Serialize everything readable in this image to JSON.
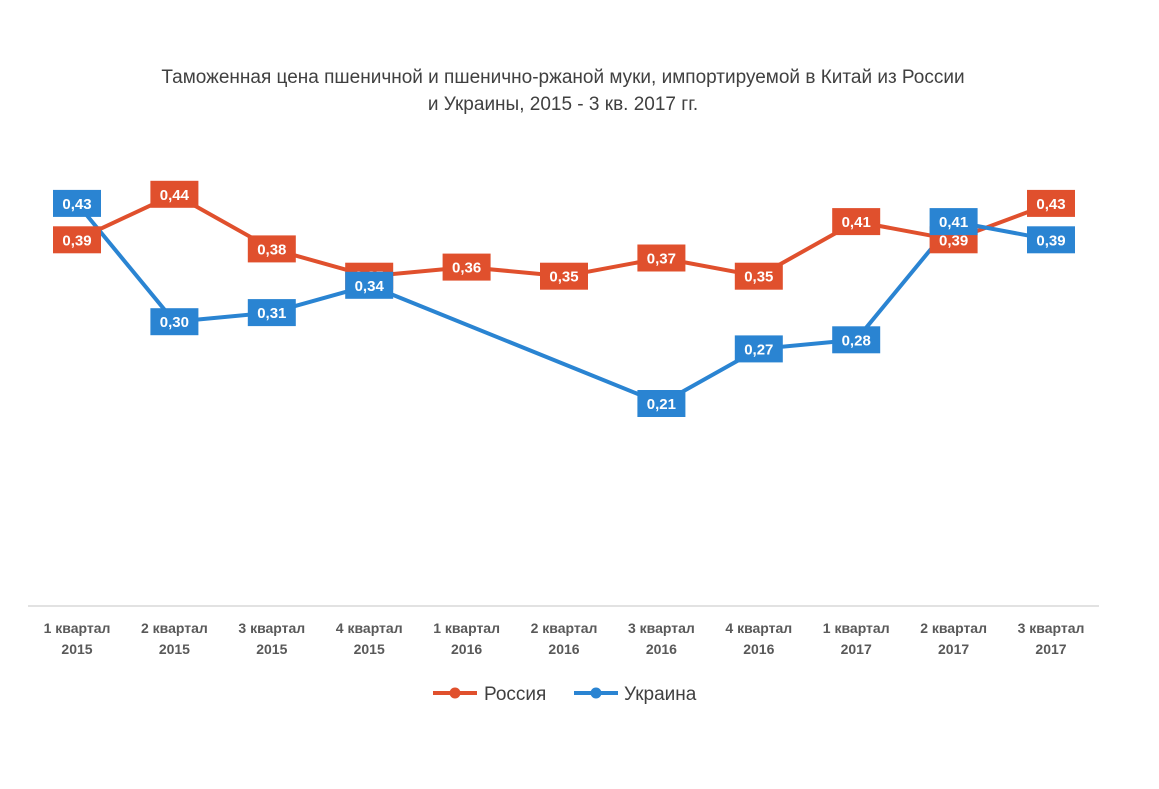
{
  "chart_data": {
    "type": "line",
    "title_lines": [
      "Таможенная цена пшеничной и пшенично-ржаной муки, импортируемой в Китай из России",
      "и Украины, 2015 - 3 кв. 2017 гг."
    ],
    "categories": [
      [
        "1 квартал",
        "2015"
      ],
      [
        "2 квартал",
        "2015"
      ],
      [
        "3 квартал",
        "2015"
      ],
      [
        "4 квартал",
        "2015"
      ],
      [
        "1 квартал",
        "2016"
      ],
      [
        "2 квартал",
        "2016"
      ],
      [
        "3 квартал",
        "2016"
      ],
      [
        "4 квартал",
        "2016"
      ],
      [
        "1 квартал",
        "2017"
      ],
      [
        "2 квартал",
        "2017"
      ],
      [
        "3 квартал",
        "2017"
      ]
    ],
    "series": [
      {
        "name": "Россия",
        "color": "#e0502d",
        "values": [
          0.39,
          0.44,
          0.38,
          0.35,
          0.36,
          0.35,
          0.37,
          0.35,
          0.41,
          0.39,
          0.43
        ],
        "labels": [
          "0,39",
          "0,44",
          "0,38",
          "0,35",
          "0,36",
          "0,35",
          "0,37",
          "0,35",
          "0,41",
          "0,39",
          "0,43"
        ]
      },
      {
        "name": "Украина",
        "color": "#2a84d2",
        "values": [
          0.43,
          0.3,
          0.31,
          0.34,
          null,
          null,
          0.21,
          0.27,
          0.28,
          0.41,
          0.39
        ],
        "labels": [
          "0,43",
          "0,30",
          "0,31",
          "0,34",
          null,
          null,
          "0,21",
          "0,27",
          "0,28",
          "0,41",
          "0,39"
        ]
      }
    ],
    "ylim": [
      0,
      0.5
    ],
    "grid": false,
    "legend_position": "bottom"
  }
}
